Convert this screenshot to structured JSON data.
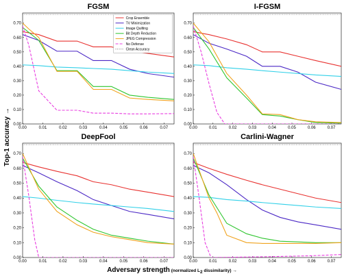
{
  "figure": {
    "ylabel": "Top-1 accuracy →",
    "xlabel_main": "Adversary strength",
    "xlabel_paren_open": " (normalized L",
    "xlabel_sub": "2",
    "xlabel_paren_close": " dissimilarity) →"
  },
  "chart_data": [
    {
      "type": "line",
      "title": "FGSM",
      "xlim": [
        0.0,
        0.075
      ],
      "ylim": [
        0.0,
        0.77
      ],
      "xticks": [
        "0.00",
        "0.01",
        "0.02",
        "0.03",
        "0.04",
        "0.05",
        "0.06",
        "0.07"
      ],
      "yticks": [
        "0.00",
        "0.10",
        "0.20",
        "0.30",
        "0.40",
        "0.50",
        "0.60",
        "0.70"
      ],
      "clean_accuracy": 0.76,
      "legend": true,
      "series": [
        {
          "name": "Crop Ensemble",
          "color": "#e8312f",
          "dash": "solid",
          "x": [
            0,
            0.008,
            0.017,
            0.027,
            0.035,
            0.044,
            0.053,
            0.062,
            0.075
          ],
          "y": [
            0.64,
            0.62,
            0.575,
            0.575,
            0.535,
            0.535,
            0.505,
            0.49,
            0.465
          ]
        },
        {
          "name": "TV Minimization",
          "color": "#4a27c5",
          "dash": "solid",
          "x": [
            0,
            0.008,
            0.017,
            0.027,
            0.035,
            0.044,
            0.053,
            0.062,
            0.075
          ],
          "y": [
            0.62,
            0.58,
            0.505,
            0.505,
            0.44,
            0.44,
            0.38,
            0.35,
            0.325
          ]
        },
        {
          "name": "Image Quilting",
          "color": "#30d0e8",
          "dash": "solid",
          "x": [
            0,
            0.008,
            0.017,
            0.027,
            0.035,
            0.044,
            0.053,
            0.062,
            0.075
          ],
          "y": [
            0.41,
            0.405,
            0.395,
            0.39,
            0.385,
            0.38,
            0.37,
            0.36,
            0.35
          ]
        },
        {
          "name": "Bit Depth Reduction",
          "color": "#2ec52e",
          "dash": "solid",
          "x": [
            0,
            0.008,
            0.017,
            0.027,
            0.035,
            0.044,
            0.053,
            0.062,
            0.075
          ],
          "y": [
            0.67,
            0.58,
            0.37,
            0.37,
            0.26,
            0.26,
            0.2,
            0.185,
            0.17
          ]
        },
        {
          "name": "JPEG Compression",
          "color": "#f0a21c",
          "dash": "solid",
          "x": [
            0,
            0.003,
            0.008,
            0.017,
            0.027,
            0.035,
            0.044,
            0.053,
            0.062,
            0.075
          ],
          "y": [
            0.7,
            0.66,
            0.6,
            0.365,
            0.365,
            0.24,
            0.24,
            0.18,
            0.17,
            0.16
          ]
        },
        {
          "name": "No Defense",
          "color": "#e83ce0",
          "dash": "dashed",
          "x": [
            0,
            0.003,
            0.008,
            0.017,
            0.027,
            0.035,
            0.044,
            0.053,
            0.062,
            0.075
          ],
          "y": [
            0.68,
            0.55,
            0.23,
            0.095,
            0.095,
            0.075,
            0.075,
            0.07,
            0.07,
            0.072
          ]
        },
        {
          "name": "Clean Accuracy",
          "color": "#777777",
          "dash": "dotted",
          "x": [
            0,
            0.075
          ],
          "y": [
            0.76,
            0.76
          ]
        }
      ]
    },
    {
      "type": "line",
      "title": "I-FGSM",
      "xlim": [
        0.0,
        0.075
      ],
      "ylim": [
        0.0,
        0.77
      ],
      "xticks": [
        "0.00",
        "0.01",
        "0.02",
        "0.03",
        "0.04",
        "0.05",
        "0.06",
        "0.07"
      ],
      "yticks": [
        "0.00",
        "0.10",
        "0.20",
        "0.30",
        "0.40",
        "0.50",
        "0.60",
        "0.70"
      ],
      "clean_accuracy": 0.76,
      "legend": false,
      "series": [
        {
          "name": "Crop Ensemble",
          "color": "#e8312f",
          "dash": "solid",
          "x": [
            0,
            0.008,
            0.017,
            0.027,
            0.035,
            0.044,
            0.053,
            0.062,
            0.075
          ],
          "y": [
            0.64,
            0.62,
            0.59,
            0.55,
            0.5,
            0.5,
            0.47,
            0.44,
            0.4
          ]
        },
        {
          "name": "TV Minimization",
          "color": "#4a27c5",
          "dash": "solid",
          "x": [
            0,
            0.008,
            0.017,
            0.027,
            0.035,
            0.044,
            0.053,
            0.062,
            0.075
          ],
          "y": [
            0.62,
            0.56,
            0.52,
            0.47,
            0.4,
            0.4,
            0.36,
            0.29,
            0.24
          ]
        },
        {
          "name": "Image Quilting",
          "color": "#30d0e8",
          "dash": "solid",
          "x": [
            0,
            0.008,
            0.017,
            0.027,
            0.035,
            0.044,
            0.053,
            0.062,
            0.075
          ],
          "y": [
            0.41,
            0.405,
            0.39,
            0.38,
            0.37,
            0.36,
            0.35,
            0.34,
            0.33
          ]
        },
        {
          "name": "Bit Depth Reduction",
          "color": "#2ec52e",
          "dash": "solid",
          "x": [
            0,
            0.008,
            0.017,
            0.027,
            0.035,
            0.044,
            0.053,
            0.062,
            0.075
          ],
          "y": [
            0.67,
            0.52,
            0.32,
            0.18,
            0.065,
            0.055,
            0.03,
            0.01,
            0.005
          ]
        },
        {
          "name": "JPEG Compression",
          "color": "#f0a21c",
          "dash": "solid",
          "x": [
            0,
            0.008,
            0.017,
            0.027,
            0.035,
            0.044,
            0.053,
            0.062,
            0.075
          ],
          "y": [
            0.7,
            0.57,
            0.35,
            0.2,
            0.07,
            0.065,
            0.03,
            0.015,
            0.01
          ]
        },
        {
          "name": "No Defense",
          "color": "#e83ce0",
          "dash": "dashed",
          "x": [
            0,
            0.004,
            0.008,
            0.012,
            0.016,
            0.075
          ],
          "y": [
            0.68,
            0.5,
            0.28,
            0.08,
            0.0,
            0.0
          ]
        },
        {
          "name": "Clean Accuracy",
          "color": "#777777",
          "dash": "dotted",
          "x": [
            0,
            0.075
          ],
          "y": [
            0.76,
            0.76
          ]
        }
      ]
    },
    {
      "type": "line",
      "title": "DeepFool",
      "xlim": [
        0.0,
        0.075
      ],
      "ylim": [
        0.0,
        0.77
      ],
      "xticks": [
        "0.00",
        "0.01",
        "0.02",
        "0.03",
        "0.04",
        "0.05",
        "0.06",
        "0.07"
      ],
      "yticks": [
        "0.00",
        "0.10",
        "0.20",
        "0.30",
        "0.40",
        "0.50",
        "0.60",
        "0.70"
      ],
      "clean_accuracy": 0.76,
      "legend": false,
      "series": [
        {
          "name": "Crop Ensemble",
          "color": "#e8312f",
          "dash": "solid",
          "x": [
            0,
            0.008,
            0.017,
            0.027,
            0.035,
            0.044,
            0.053,
            0.062,
            0.075
          ],
          "y": [
            0.64,
            0.61,
            0.58,
            0.55,
            0.51,
            0.49,
            0.46,
            0.44,
            0.41
          ]
        },
        {
          "name": "TV Minimization",
          "color": "#4a27c5",
          "dash": "solid",
          "x": [
            0,
            0.008,
            0.017,
            0.027,
            0.035,
            0.044,
            0.053,
            0.062,
            0.075
          ],
          "y": [
            0.62,
            0.57,
            0.51,
            0.45,
            0.39,
            0.35,
            0.31,
            0.29,
            0.26
          ]
        },
        {
          "name": "Image Quilting",
          "color": "#30d0e8",
          "dash": "solid",
          "x": [
            0,
            0.008,
            0.017,
            0.027,
            0.035,
            0.044,
            0.053,
            0.062,
            0.075
          ],
          "y": [
            0.41,
            0.4,
            0.385,
            0.37,
            0.36,
            0.35,
            0.34,
            0.33,
            0.31
          ]
        },
        {
          "name": "Bit Depth Reduction",
          "color": "#2ec52e",
          "dash": "solid",
          "x": [
            0,
            0.008,
            0.017,
            0.027,
            0.035,
            0.044,
            0.053,
            0.062,
            0.075
          ],
          "y": [
            0.67,
            0.48,
            0.34,
            0.25,
            0.19,
            0.15,
            0.13,
            0.11,
            0.09
          ]
        },
        {
          "name": "JPEG Compression",
          "color": "#f0a21c",
          "dash": "solid",
          "x": [
            0,
            0.008,
            0.017,
            0.027,
            0.035,
            0.044,
            0.053,
            0.062,
            0.075
          ],
          "y": [
            0.7,
            0.46,
            0.31,
            0.22,
            0.17,
            0.14,
            0.12,
            0.1,
            0.09
          ]
        },
        {
          "name": "No Defense",
          "color": "#e83ce0",
          "dash": "dashed",
          "x": [
            0,
            0.003,
            0.006,
            0.008,
            0.075
          ],
          "y": [
            0.68,
            0.42,
            0.12,
            0.0,
            0.0
          ]
        },
        {
          "name": "Clean Accuracy",
          "color": "#777777",
          "dash": "dotted",
          "x": [
            0,
            0.075
          ],
          "y": [
            0.76,
            0.76
          ]
        }
      ]
    },
    {
      "type": "line",
      "title": "Carlini-Wagner",
      "xlim": [
        0.0,
        0.075
      ],
      "ylim": [
        0.0,
        0.77
      ],
      "xticks": [
        "0.00",
        "0.01",
        "0.02",
        "0.03",
        "0.04",
        "0.05",
        "0.06",
        "0.07"
      ],
      "yticks": [
        "0.00",
        "0.10",
        "0.20",
        "0.30",
        "0.40",
        "0.50",
        "0.60",
        "0.70"
      ],
      "clean_accuracy": 0.76,
      "legend": false,
      "series": [
        {
          "name": "Crop Ensemble",
          "color": "#e8312f",
          "dash": "solid",
          "x": [
            0,
            0.008,
            0.017,
            0.027,
            0.035,
            0.044,
            0.053,
            0.062,
            0.075
          ],
          "y": [
            0.64,
            0.6,
            0.56,
            0.52,
            0.49,
            0.46,
            0.43,
            0.4,
            0.37
          ]
        },
        {
          "name": "TV Minimization",
          "color": "#4a27c5",
          "dash": "solid",
          "x": [
            0,
            0.008,
            0.017,
            0.027,
            0.035,
            0.044,
            0.053,
            0.062,
            0.075
          ],
          "y": [
            0.62,
            0.57,
            0.49,
            0.39,
            0.32,
            0.27,
            0.24,
            0.22,
            0.19
          ]
        },
        {
          "name": "Image Quilting",
          "color": "#30d0e8",
          "dash": "solid",
          "x": [
            0,
            0.008,
            0.017,
            0.027,
            0.035,
            0.044,
            0.053,
            0.062,
            0.075
          ],
          "y": [
            0.41,
            0.405,
            0.39,
            0.38,
            0.37,
            0.36,
            0.35,
            0.34,
            0.33
          ]
        },
        {
          "name": "Bit Depth Reduction",
          "color": "#2ec52e",
          "dash": "solid",
          "x": [
            0,
            0.008,
            0.017,
            0.027,
            0.035,
            0.044,
            0.053,
            0.062,
            0.075
          ],
          "y": [
            0.67,
            0.42,
            0.23,
            0.16,
            0.13,
            0.11,
            0.105,
            0.1,
            0.1
          ]
        },
        {
          "name": "JPEG Compression",
          "color": "#f0a21c",
          "dash": "solid",
          "x": [
            0,
            0.008,
            0.012,
            0.017,
            0.027,
            0.035,
            0.044,
            0.053,
            0.062,
            0.075
          ],
          "y": [
            0.7,
            0.4,
            0.3,
            0.15,
            0.1,
            0.095,
            0.095,
            0.095,
            0.095,
            0.1
          ]
        },
        {
          "name": "No Defense",
          "color": "#e83ce0",
          "dash": "dashed",
          "x": [
            0,
            0.003,
            0.006,
            0.009,
            0.02,
            0.04,
            0.06,
            0.075
          ],
          "y": [
            0.68,
            0.4,
            0.1,
            0.0,
            0.002,
            0.006,
            0.012,
            0.02
          ]
        },
        {
          "name": "Clean Accuracy",
          "color": "#777777",
          "dash": "dotted",
          "x": [
            0,
            0.075
          ],
          "y": [
            0.76,
            0.76
          ]
        }
      ]
    }
  ]
}
